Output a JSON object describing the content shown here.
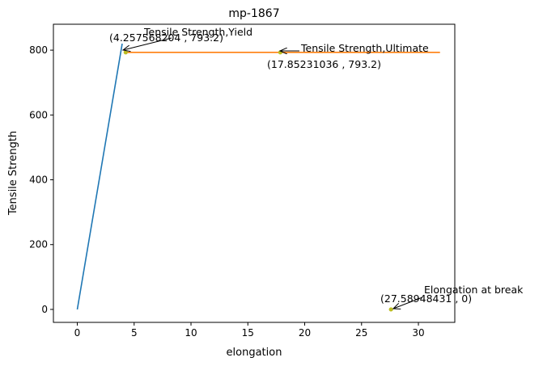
{
  "chart_data": {
    "type": "line",
    "title": "mp-1867",
    "xlabel": "elongation",
    "ylabel": "Tensile Strength",
    "xlim": [
      -2.1,
      33.2
    ],
    "ylim": [
      -40,
      880
    ],
    "x_ticks": [
      0,
      5,
      10,
      15,
      20,
      25,
      30
    ],
    "y_ticks": [
      0,
      200,
      400,
      600,
      800
    ],
    "grid": false,
    "series": [
      {
        "color": "#1f77b4",
        "x": [
          0,
          3.95
        ],
        "y": [
          0,
          820
        ]
      },
      {
        "color": "#ff7f0e",
        "x": [
          4.257568204,
          31.9
        ],
        "y": [
          793.2,
          793.2
        ]
      }
    ],
    "points": [
      {
        "x": 4.257568204,
        "y": 793.2,
        "color": "#bcbd22"
      },
      {
        "x": 17.85231036,
        "y": 793.2,
        "color": "#bcbd22"
      },
      {
        "x": 27.58948431,
        "y": 0,
        "color": "#bcbd22"
      }
    ],
    "annotations": [
      {
        "label": "Tensile Strength,Yield",
        "coord_text": "(4.257568204 , 793.2)",
        "x": 4.257568204,
        "y": 793.2
      },
      {
        "label": "Tensile Strength,Ultimate",
        "coord_text": "(17.85231036 , 793.2)",
        "x": 17.85231036,
        "y": 793.2
      },
      {
        "label": "Elongation at break",
        "coord_text": "(27.58948431 , 0)",
        "x": 27.58948431,
        "y": 0
      }
    ]
  }
}
